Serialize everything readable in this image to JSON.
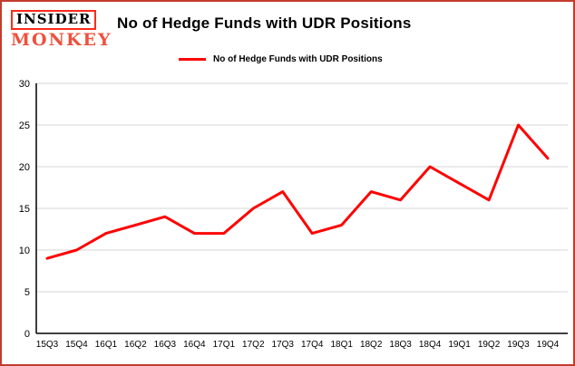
{
  "branding": {
    "line1": "INSIDER",
    "line2": "MONKEY"
  },
  "header": {
    "title": "No of Hedge Funds with UDR Positions"
  },
  "legend": {
    "label": "No of Hedge Funds with UDR Positions"
  },
  "colors": {
    "line": "#ff0000",
    "border": "#c23b2e",
    "grid": "#d6d6d6",
    "axis": "#000000"
  },
  "chart_data": {
    "type": "line",
    "title": "No of Hedge Funds with UDR Positions",
    "categories": [
      "15Q3",
      "15Q4",
      "16Q1",
      "16Q2",
      "16Q3",
      "16Q4",
      "17Q1",
      "17Q2",
      "17Q3",
      "17Q4",
      "18Q1",
      "18Q2",
      "18Q3",
      "18Q4",
      "19Q1",
      "19Q2",
      "19Q3",
      "19Q4"
    ],
    "values": [
      9,
      10,
      12,
      13,
      14,
      12,
      12,
      15,
      17,
      12,
      13,
      17,
      16,
      20,
      18,
      16,
      25,
      21
    ],
    "xlabel": "",
    "ylabel": "",
    "ylim": [
      0,
      30
    ],
    "yticks": [
      0,
      5,
      10,
      15,
      20,
      25,
      30
    ],
    "grid": true,
    "legend_position": "top"
  }
}
